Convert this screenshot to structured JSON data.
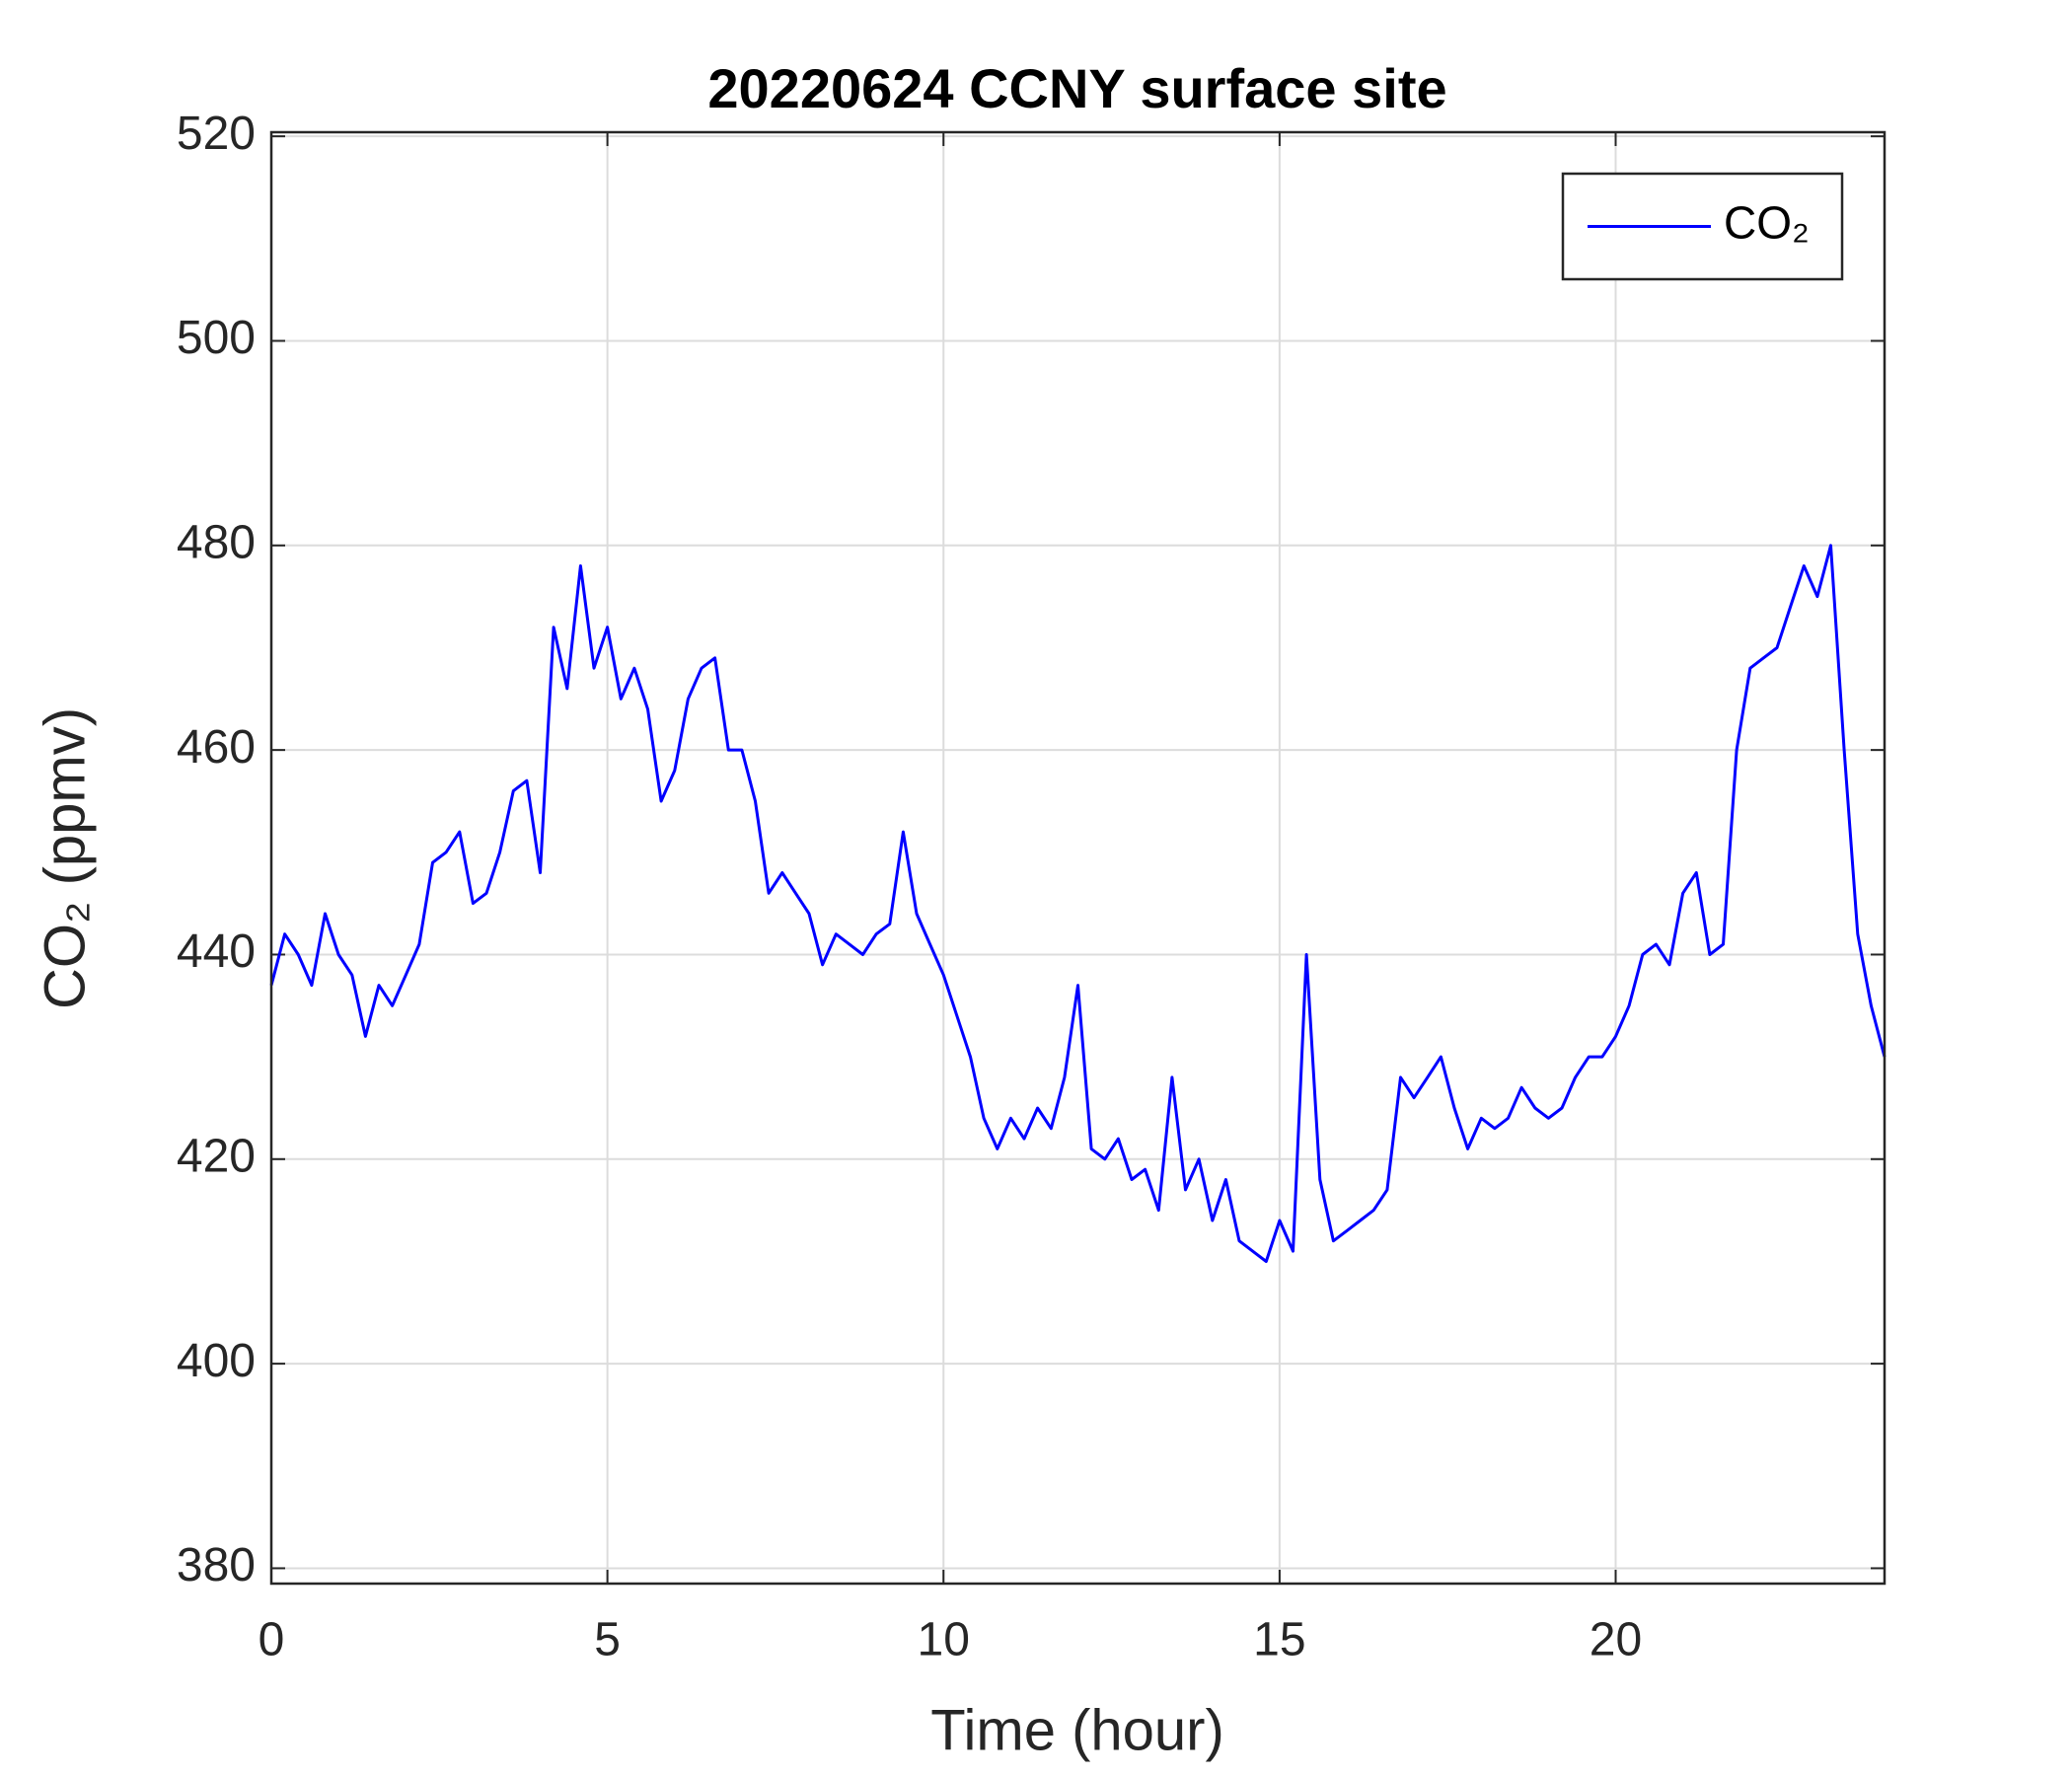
{
  "chart_data": {
    "type": "line",
    "title": "20220624 CCNY surface site",
    "x_label": "Time (hour)",
    "y_label": "CO₂ (ppmv)",
    "x": [
      0,
      0.2,
      0.4,
      0.6,
      0.8,
      1,
      1.2,
      1.4,
      1.6,
      1.8,
      2,
      2.2,
      2.4,
      2.6,
      2.8,
      3,
      3.2,
      3.4,
      3.6,
      3.8,
      4,
      4.2,
      4.4,
      4.6,
      4.8,
      5,
      5.2,
      5.4,
      5.6,
      5.8,
      6,
      6.2,
      6.4,
      6.6,
      6.8,
      7,
      7.2,
      7.4,
      7.6,
      7.8,
      8,
      8.2,
      8.4,
      8.6,
      8.8,
      9,
      9.2,
      9.4,
      9.6,
      9.8,
      10,
      10.2,
      10.4,
      10.6,
      10.8,
      11,
      11.2,
      11.4,
      11.6,
      11.8,
      12,
      12.2,
      12.4,
      12.6,
      12.8,
      13,
      13.2,
      13.4,
      13.6,
      13.8,
      14,
      14.2,
      14.4,
      14.6,
      14.8,
      15,
      15.2,
      15.4,
      15.6,
      15.8,
      16,
      16.2,
      16.4,
      16.6,
      16.8,
      17,
      17.2,
      17.4,
      17.6,
      17.8,
      18,
      18.2,
      18.4,
      18.6,
      18.8,
      19,
      19.2,
      19.4,
      19.6,
      19.8,
      20,
      20.2,
      20.4,
      20.6,
      20.8,
      21,
      21.2,
      21.4,
      21.6,
      21.8,
      22,
      22.2,
      22.4,
      22.6,
      22.8,
      23,
      23.2,
      23.4,
      23.6,
      23.8,
      24
    ],
    "series": [
      {
        "name": "CO₂",
        "color": "#0000ff",
        "values": [
          437,
          442,
          440,
          437,
          444,
          440,
          438,
          432,
          437,
          435,
          438,
          441,
          449,
          450,
          452,
          445,
          446,
          450,
          456,
          457,
          448,
          472,
          466,
          478,
          468,
          472,
          465,
          468,
          464,
          455,
          458,
          465,
          468,
          469,
          460,
          460,
          455,
          446,
          448,
          446,
          444,
          439,
          442,
          441,
          440,
          442,
          443,
          452,
          444,
          441,
          438,
          434,
          430,
          424,
          421,
          424,
          422,
          425,
          423,
          428,
          437,
          421,
          420,
          422,
          418,
          419,
          415,
          428,
          417,
          420,
          414,
          418,
          412,
          411,
          410,
          414,
          411,
          440,
          418,
          412,
          413,
          414,
          415,
          417,
          428,
          426,
          428,
          430,
          425,
          421,
          424,
          423,
          424,
          427,
          425,
          424,
          425,
          428,
          430,
          430,
          432,
          435,
          440,
          441,
          439,
          446,
          448,
          440,
          441,
          460,
          468,
          469,
          470,
          474,
          478,
          475,
          480,
          460,
          442,
          435,
          430
        ]
      }
    ],
    "xlim": [
      0,
      24
    ],
    "xticks": [
      0,
      5,
      10,
      15,
      20
    ],
    "ylim": [
      378.5,
      520.4
    ],
    "yticks": [
      380,
      400,
      420,
      440,
      460,
      480,
      500,
      520
    ],
    "grid": true,
    "legend": "upper right"
  }
}
